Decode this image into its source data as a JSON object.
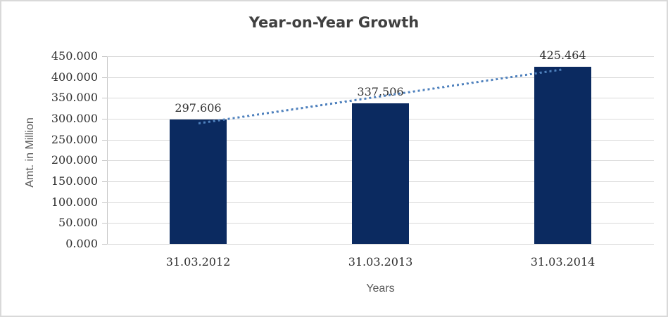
{
  "frame": {
    "background": "#ffffff",
    "border_color": "#d9d9d9"
  },
  "chart_data": {
    "type": "bar",
    "title": "Year-on-Year Growth",
    "xlabel": "Years",
    "ylabel": "Amt. in Million",
    "categories": [
      "31.03.2012",
      "31.03.2013",
      "31.03.2014"
    ],
    "values": [
      297.606,
      337.506,
      425.464
    ],
    "data_labels": [
      "297.606",
      "337.506",
      "425.464"
    ],
    "ylim": [
      0,
      450
    ],
    "yticks": [
      {
        "value": 0,
        "label": "0.000"
      },
      {
        "value": 50,
        "label": "50.000"
      },
      {
        "value": 100,
        "label": "100.000"
      },
      {
        "value": 150,
        "label": "150.000"
      },
      {
        "value": 200,
        "label": "200.000"
      },
      {
        "value": 250,
        "label": "250.000"
      },
      {
        "value": 300,
        "label": "300.000"
      },
      {
        "value": 350,
        "label": "350.000"
      },
      {
        "value": 400,
        "label": "400.000"
      },
      {
        "value": 450,
        "label": "450.000"
      }
    ],
    "grid": true,
    "legend": "none",
    "bar_color": "#0b2a60",
    "trendline": {
      "type": "linear",
      "style": "dotted",
      "color": "#4f81bd",
      "from_category_index": 0,
      "to_category_index": 2
    },
    "colors": {
      "gridline": "#d9d9d9",
      "axis_line": "#c6c6c6",
      "number_text": "#303030",
      "title_text": "#404040",
      "axis_title_text": "#595959"
    }
  }
}
